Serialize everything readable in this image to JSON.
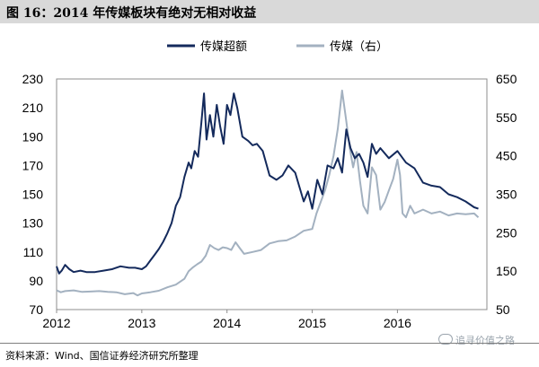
{
  "figure": {
    "title": "图 16：2014 年传媒板块有绝对无相对收益",
    "source": "资料来源：Wind、国信证券经济研究所整理",
    "watermark": "追寻价值之路"
  },
  "colors": {
    "excess": "#142a5c",
    "media": "#a3b1c0",
    "title_bg": "#d9d9d9"
  },
  "chart_data": {
    "type": "line",
    "title": "",
    "xlabel": "",
    "ylabel": "",
    "x_ticks": [
      "2012",
      "2013",
      "2014",
      "2015",
      "2016"
    ],
    "x_range": [
      2012.0,
      2017.05
    ],
    "left_axis": {
      "range": [
        70,
        230
      ],
      "ticks": [
        70,
        90,
        110,
        130,
        150,
        170,
        190,
        210,
        230
      ]
    },
    "right_axis": {
      "range": [
        50,
        650
      ],
      "ticks": [
        50,
        150,
        250,
        350,
        450,
        550,
        650
      ]
    },
    "legend": {
      "position": "top-center",
      "entries": [
        "传媒超额",
        "传媒（右）"
      ]
    },
    "grid": false,
    "series": [
      {
        "name": "传媒超额",
        "axis": "left",
        "color": "#142a5c",
        "x": [
          2012.0,
          2012.03,
          2012.06,
          2012.1,
          2012.15,
          2012.2,
          2012.28,
          2012.35,
          2012.45,
          2012.55,
          2012.65,
          2012.75,
          2012.85,
          2012.92,
          2013.0,
          2013.05,
          2013.1,
          2013.15,
          2013.2,
          2013.25,
          2013.3,
          2013.35,
          2013.4,
          2013.45,
          2013.5,
          2013.55,
          2013.58,
          2013.62,
          2013.66,
          2013.7,
          2013.73,
          2013.76,
          2013.8,
          2013.84,
          2013.88,
          2013.92,
          2013.96,
          2014.0,
          2014.04,
          2014.08,
          2014.12,
          2014.18,
          2014.25,
          2014.3,
          2014.35,
          2014.42,
          2014.5,
          2014.58,
          2014.65,
          2014.72,
          2014.8,
          2014.9,
          2014.95,
          2015.0,
          2015.06,
          2015.12,
          2015.18,
          2015.25,
          2015.3,
          2015.35,
          2015.4,
          2015.45,
          2015.5,
          2015.55,
          2015.6,
          2015.65,
          2015.7,
          2015.75,
          2015.8,
          2015.9,
          2016.0,
          2016.1,
          2016.2,
          2016.3,
          2016.4,
          2016.5,
          2016.6,
          2016.7,
          2016.8,
          2016.9,
          2016.95
        ],
        "values": [
          100,
          95,
          97,
          101,
          98,
          96,
          97,
          96,
          96,
          97,
          98,
          100,
          99,
          99,
          98,
          100,
          104,
          108,
          112,
          117,
          123,
          130,
          142,
          148,
          162,
          172,
          168,
          180,
          176,
          200,
          220,
          188,
          205,
          190,
          212,
          197,
          185,
          212,
          205,
          220,
          210,
          190,
          187,
          184,
          185,
          180,
          163,
          160,
          163,
          170,
          165,
          145,
          152,
          140,
          160,
          150,
          170,
          168,
          175,
          165,
          195,
          182,
          175,
          178,
          172,
          162,
          185,
          178,
          182,
          175,
          180,
          172,
          168,
          158,
          156,
          155,
          150,
          148,
          145,
          141,
          140
        ]
      },
      {
        "name": "传媒（右）",
        "axis": "right",
        "color": "#a3b1c0",
        "x": [
          2012.0,
          2012.05,
          2012.1,
          2012.2,
          2012.3,
          2012.4,
          2012.5,
          2012.6,
          2012.7,
          2012.8,
          2012.9,
          2012.95,
          2013.0,
          2013.1,
          2013.2,
          2013.3,
          2013.4,
          2013.5,
          2013.55,
          2013.6,
          2013.65,
          2013.7,
          2013.75,
          2013.8,
          2013.85,
          2013.9,
          2013.95,
          2014.0,
          2014.05,
          2014.1,
          2014.15,
          2014.2,
          2014.3,
          2014.4,
          2014.5,
          2014.6,
          2014.7,
          2014.8,
          2014.9,
          2015.0,
          2015.05,
          2015.1,
          2015.15,
          2015.2,
          2015.25,
          2015.3,
          2015.35,
          2015.4,
          2015.44,
          2015.48,
          2015.52,
          2015.56,
          2015.6,
          2015.65,
          2015.7,
          2015.75,
          2015.8,
          2015.85,
          2015.9,
          2015.95,
          2016.0,
          2016.03,
          2016.06,
          2016.1,
          2016.15,
          2016.2,
          2016.3,
          2016.4,
          2016.5,
          2016.6,
          2016.7,
          2016.8,
          2016.9,
          2016.95
        ],
        "values": [
          100,
          95,
          98,
          100,
          96,
          97,
          98,
          96,
          95,
          90,
          93,
          87,
          92,
          95,
          99,
          108,
          115,
          130,
          150,
          160,
          168,
          175,
          190,
          218,
          210,
          205,
          212,
          210,
          205,
          225,
          210,
          195,
          200,
          205,
          222,
          228,
          230,
          240,
          255,
          260,
          300,
          330,
          360,
          400,
          450,
          520,
          620,
          540,
          470,
          420,
          460,
          385,
          320,
          300,
          420,
          400,
          310,
          330,
          360,
          390,
          440,
          400,
          300,
          290,
          320,
          300,
          310,
          300,
          305,
          295,
          300,
          298,
          300,
          290
        ]
      }
    ]
  }
}
